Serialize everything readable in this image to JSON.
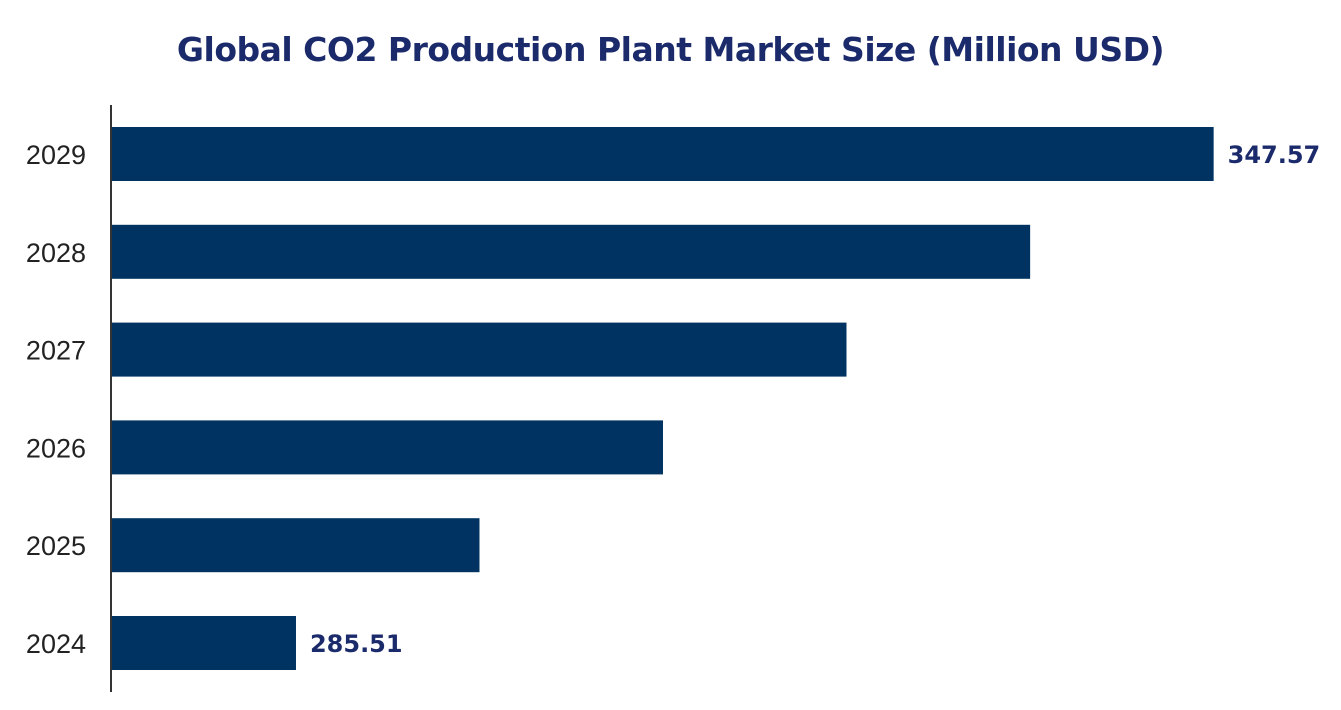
{
  "chart_data": {
    "type": "bar",
    "orientation": "horizontal",
    "title": "Global CO2 Production Plant Market Size (Million USD)",
    "categories": [
      "2024",
      "2025",
      "2026",
      "2027",
      "2028",
      "2029"
    ],
    "values": [
      285.51,
      297.92,
      310.33,
      322.74,
      335.16,
      347.57
    ],
    "data_labels": {
      "2024": "285.51",
      "2029": "347.57"
    },
    "xlim": [
      273,
      348
    ],
    "xlabel": "",
    "ylabel": "",
    "grid": false,
    "legend": "none",
    "colors": {
      "bar": "#003361",
      "title": "#1b2a6b",
      "data_label": "#1b2a6b"
    }
  }
}
